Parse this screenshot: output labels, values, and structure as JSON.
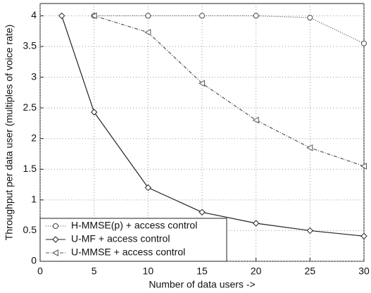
{
  "chart_data": {
    "type": "line",
    "xlabel": "Number of data users ->",
    "ylabel": "Throughput per data user (multiples of voice rate)",
    "xlim": [
      0,
      30
    ],
    "xticks": [
      0,
      5,
      10,
      15,
      20,
      25,
      30
    ],
    "ylim": [
      0,
      4.2
    ],
    "yticks": [
      0,
      0.5,
      1,
      1.5,
      2,
      2.5,
      3,
      3.5,
      4
    ],
    "grid": true,
    "legend": "lower left",
    "series": [
      {
        "name": "H-MMSE(p) + access control",
        "color": "#444444",
        "marker": "circle",
        "dash": "dotted",
        "x": [
          5,
          10,
          15,
          20,
          25,
          30
        ],
        "values": [
          4,
          4,
          4,
          4,
          3.97,
          3.55
        ]
      },
      {
        "name": "U-MF + access control",
        "color": "#222222",
        "marker": "diamond",
        "dash": "solid",
        "x": [
          2,
          5,
          10,
          15,
          20,
          25,
          30
        ],
        "values": [
          4,
          2.43,
          1.2,
          0.8,
          0.62,
          0.5,
          0.41
        ]
      },
      {
        "name": "U-MMSE + access control",
        "color": "#555555",
        "marker": "triangle",
        "dash": "dashdot",
        "x": [
          5,
          10,
          15,
          20,
          25,
          30
        ],
        "values": [
          4,
          3.73,
          2.9,
          2.3,
          1.85,
          1.55
        ]
      }
    ]
  }
}
